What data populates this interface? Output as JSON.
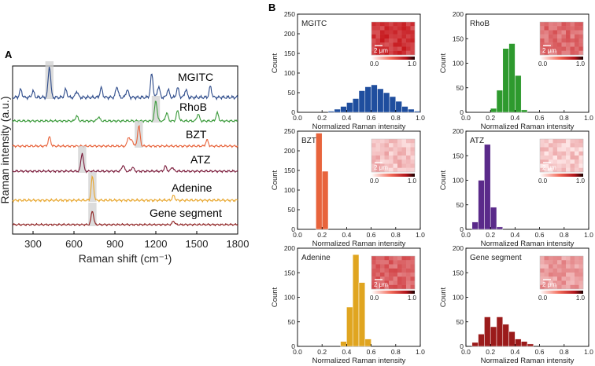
{
  "panel_labels": {
    "a": "A",
    "b": "B"
  },
  "chart_data": [
    {
      "id": "A",
      "type": "line",
      "title": "",
      "xlabel": "Raman shift (cm⁻¹)",
      "ylabel": "Raman intensity (a.u.)",
      "xlim": [
        150,
        1800
      ],
      "x_ticks": [
        300,
        600,
        900,
        1200,
        1500,
        1800
      ],
      "x_tick_labels": [
        "300",
        "600",
        "900",
        "1200",
        "1500",
        "1800"
      ],
      "highlight_width": 60,
      "series": [
        {
          "name": "MGITC",
          "color": "#2c4a8a",
          "label_color": "#000000",
          "highlight": 420,
          "peaks": [
            [
              210,
              0.25
            ],
            [
              300,
              0.2
            ],
            [
              420,
              1.0
            ],
            [
              540,
              0.25
            ],
            [
              620,
              0.2
            ],
            [
              800,
              0.3
            ],
            [
              915,
              0.35
            ],
            [
              990,
              0.25
            ],
            [
              1170,
              0.75
            ],
            [
              1220,
              0.35
            ],
            [
              1290,
              0.25
            ],
            [
              1360,
              0.3
            ],
            [
              1420,
              0.25
            ],
            [
              1600,
              0.35
            ]
          ]
        },
        {
          "name": "RhoB",
          "color": "#3a9a3a",
          "label_color": "#000000",
          "highlight": 1200,
          "peaks": [
            [
              620,
              0.25
            ],
            [
              780,
              0.2
            ],
            [
              1200,
              1.0
            ],
            [
              1280,
              0.4
            ],
            [
              1360,
              0.5
            ],
            [
              1510,
              0.35
            ],
            [
              1650,
              0.4
            ]
          ]
        },
        {
          "name": "BZT",
          "color": "#e8643c",
          "label_color": "#000000",
          "highlight": 1075,
          "peaks": [
            [
              420,
              0.45
            ],
            [
              1000,
              0.45
            ],
            [
              1025,
              0.3
            ],
            [
              1075,
              1.0
            ],
            [
              1575,
              0.3
            ]
          ]
        },
        {
          "name": "ATZ",
          "color": "#7a1a3a",
          "label_color": "#000000",
          "highlight": 660,
          "peaks": [
            [
              660,
              0.9
            ],
            [
              960,
              0.3
            ],
            [
              1030,
              0.2
            ],
            [
              1270,
              0.25
            ],
            [
              1320,
              0.2
            ]
          ]
        },
        {
          "name": "Adenine",
          "color": "#e8a52a",
          "label_color": "#000000",
          "highlight": 735,
          "peaks": [
            [
              735,
              1.0
            ],
            [
              1330,
              0.2
            ]
          ]
        },
        {
          "name": "Gene segment",
          "color": "#8b1a1a",
          "label_color": "#000000",
          "highlight": 735,
          "peaks": [
            [
              735,
              0.8
            ],
            [
              1330,
              0.2
            ]
          ]
        }
      ]
    },
    {
      "id": "MGITC",
      "type": "bar",
      "label": "MGITC",
      "color": "#1f4e9e",
      "xlabel": "Normalized Raman intensity",
      "ylabel": "Count",
      "xlim": [
        0,
        1
      ],
      "ylim": [
        0,
        250
      ],
      "x_ticks": [
        0,
        0.2,
        0.4,
        0.6,
        0.8,
        1.0
      ],
      "x_tick_labels": [
        "0.0",
        "0.2",
        "0.4",
        "0.6",
        "0.8",
        "1.0"
      ],
      "y_ticks": [
        0,
        50,
        100,
        150,
        200,
        250
      ],
      "y_tick_labels": [
        "0",
        "50",
        "100",
        "150",
        "200",
        "250"
      ],
      "bin_width": 0.05,
      "bin_starts": [
        0.25,
        0.3,
        0.35,
        0.4,
        0.45,
        0.5,
        0.55,
        0.6,
        0.65,
        0.7,
        0.75,
        0.8,
        0.85,
        0.9,
        0.95
      ],
      "values": [
        3,
        8,
        15,
        25,
        35,
        55,
        65,
        70,
        60,
        50,
        40,
        28,
        15,
        8,
        3
      ],
      "inset": {
        "scale_bar": "2 μm",
        "cbar_min": "0.0",
        "cbar_max": "1.0",
        "level": 0.8
      }
    },
    {
      "id": "RhoB",
      "type": "bar",
      "label": "RhoB",
      "color": "#2e9a2e",
      "xlabel": "Normalized Raman intensity",
      "ylabel": "Count",
      "xlim": [
        0,
        1
      ],
      "ylim": [
        0,
        200
      ],
      "x_ticks": [
        0,
        0.2,
        0.4,
        0.6,
        0.8,
        1.0
      ],
      "x_tick_labels": [
        "0.0",
        "0.2",
        "0.4",
        "0.6",
        "0.8",
        "1.0"
      ],
      "y_ticks": [
        0,
        50,
        100,
        150,
        200
      ],
      "y_tick_labels": [
        "0",
        "50",
        "100",
        "150",
        "200"
      ],
      "bin_width": 0.05,
      "bin_starts": [
        0.2,
        0.25,
        0.3,
        0.35,
        0.4,
        0.45
      ],
      "values": [
        8,
        45,
        130,
        140,
        75,
        5
      ],
      "inset": {
        "scale_bar": "2 μm",
        "cbar_min": "0.0",
        "cbar_max": "1.0",
        "level": 0.55
      }
    },
    {
      "id": "BZT",
      "type": "bar",
      "label": "BZT",
      "color": "#e8643c",
      "xlabel": "Normalized Raman intensity",
      "ylabel": "Count",
      "xlim": [
        0,
        1
      ],
      "ylim": [
        0,
        250
      ],
      "x_ticks": [
        0,
        0.2,
        0.4,
        0.6,
        0.8,
        1.0
      ],
      "x_tick_labels": [
        "0.0",
        "0.2",
        "0.4",
        "0.6",
        "0.8",
        "1.0"
      ],
      "y_ticks": [
        0,
        50,
        100,
        150,
        200,
        250
      ],
      "y_tick_labels": [
        "0",
        "50",
        "100",
        "150",
        "200",
        "250"
      ],
      "bin_width": 0.05,
      "bin_starts": [
        0.15,
        0.2
      ],
      "values": [
        245,
        148
      ],
      "inset": {
        "scale_bar": "2 μm",
        "cbar_min": "0.0",
        "cbar_max": "1.0",
        "level": 0.2
      }
    },
    {
      "id": "ATZ",
      "type": "bar",
      "label": "ATZ",
      "color": "#5a2a8a",
      "xlabel": "Normalized Raman intensity",
      "ylabel": "Count",
      "xlim": [
        0,
        1
      ],
      "ylim": [
        0,
        200
      ],
      "x_ticks": [
        0,
        0.2,
        0.4,
        0.6,
        0.8,
        1.0
      ],
      "x_tick_labels": [
        "0.0",
        "0.2",
        "0.4",
        "0.6",
        "0.8",
        "1.0"
      ],
      "y_ticks": [
        0,
        50,
        100,
        150,
        200
      ],
      "y_tick_labels": [
        "0",
        "50",
        "100",
        "150",
        "200"
      ],
      "bin_width": 0.05,
      "bin_starts": [
        0.05,
        0.1,
        0.15,
        0.2,
        0.25
      ],
      "values": [
        15,
        100,
        173,
        45,
        5
      ],
      "inset": {
        "scale_bar": "2 μm",
        "cbar_min": "0.0",
        "cbar_max": "1.0",
        "level": 0.15
      }
    },
    {
      "id": "Adenine",
      "type": "bar",
      "label": "Adenine",
      "color": "#e0a520",
      "xlabel": "Normalized Raman intensity",
      "ylabel": "Count",
      "xlim": [
        0,
        1
      ],
      "ylim": [
        0,
        200
      ],
      "x_ticks": [
        0,
        0.2,
        0.4,
        0.6,
        0.8,
        1.0
      ],
      "x_tick_labels": [
        "0.0",
        "0.2",
        "0.4",
        "0.6",
        "0.8",
        "1.0"
      ],
      "y_ticks": [
        0,
        50,
        100,
        150,
        200
      ],
      "y_tick_labels": [
        "0",
        "50",
        "100",
        "150",
        "200"
      ],
      "bin_width": 0.05,
      "bin_starts": [
        0.35,
        0.4,
        0.45,
        0.5,
        0.55
      ],
      "values": [
        10,
        80,
        187,
        130,
        15
      ],
      "inset": {
        "scale_bar": "2 μm",
        "cbar_min": "0.0",
        "cbar_max": "1.0",
        "level": 0.6
      }
    },
    {
      "id": "Gene segment",
      "type": "bar",
      "label": "Gene segment",
      "color": "#9b1b1b",
      "xlabel": "Normalized Raman intensity",
      "ylabel": "Count",
      "xlim": [
        0,
        1
      ],
      "ylim": [
        0,
        200
      ],
      "x_ticks": [
        0,
        0.2,
        0.4,
        0.6,
        0.8,
        1.0
      ],
      "x_tick_labels": [
        "0.0",
        "0.2",
        "0.4",
        "0.6",
        "0.8",
        "1.0"
      ],
      "y_ticks": [
        0,
        50,
        100,
        150,
        200
      ],
      "y_tick_labels": [
        "0",
        "50",
        "100",
        "150",
        "200"
      ],
      "bin_width": 0.05,
      "bin_starts": [
        0.05,
        0.1,
        0.15,
        0.2,
        0.25,
        0.3,
        0.35,
        0.4,
        0.45,
        0.5
      ],
      "values": [
        8,
        25,
        60,
        40,
        60,
        45,
        30,
        15,
        10,
        5
      ],
      "inset": {
        "scale_bar": "2 μm",
        "cbar_min": "0.0",
        "cbar_max": "1.0",
        "level": 0.35
      }
    }
  ]
}
